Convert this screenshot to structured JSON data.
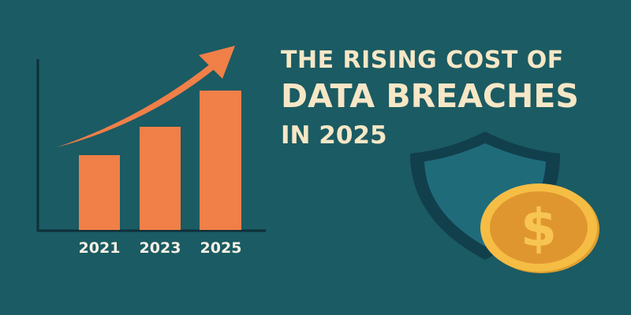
{
  "title": {
    "line1": "THE RISING COST OF",
    "line2": "DATA BREACHES",
    "line3": "IN 2025"
  },
  "chart": {
    "categories": [
      "2021",
      "2023",
      "2025"
    ],
    "trend": "rising"
  },
  "icons": [
    "trend-arrow-icon",
    "shield-icon",
    "dollar-coin-icon"
  ],
  "colors": {
    "background": "#1b5b63",
    "bars": "#f07f48",
    "title_text": "#f6e7c6",
    "shield_outline": "#123f4c",
    "shield_fill": "#1f6b7a",
    "coin": "#f2b33d"
  }
}
